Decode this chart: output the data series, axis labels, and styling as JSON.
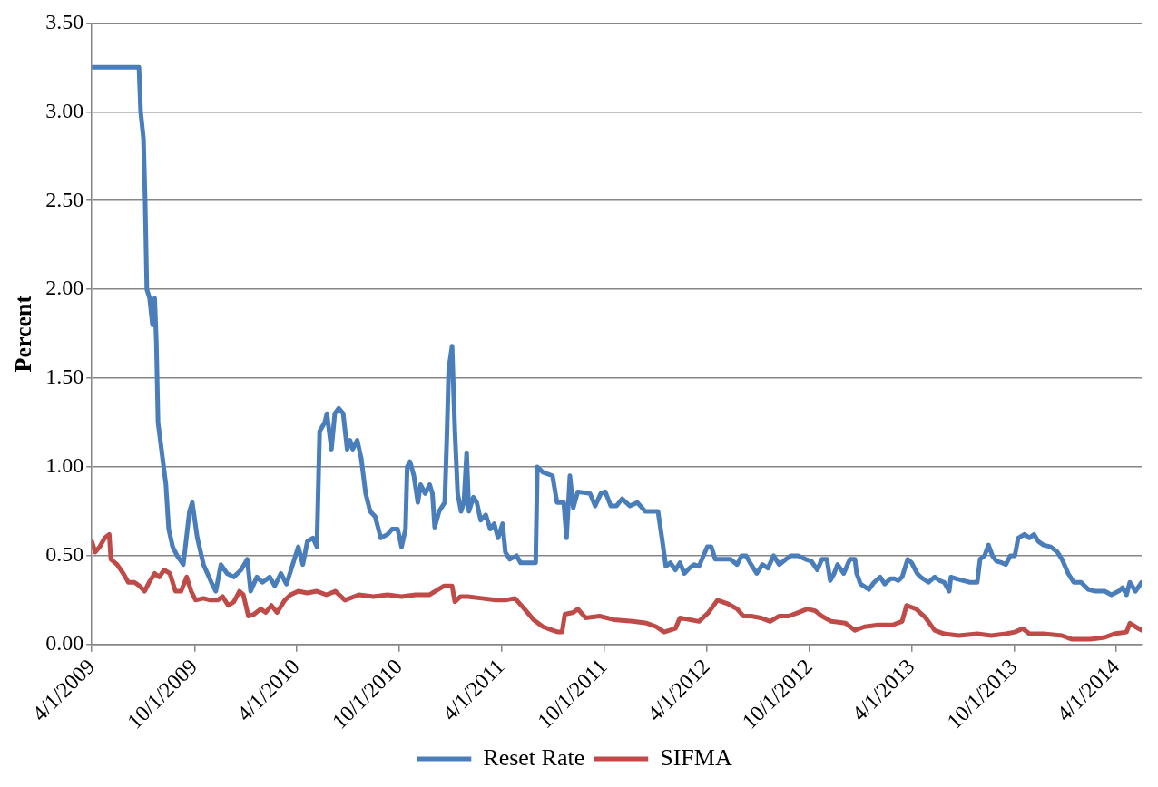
{
  "chart_data": {
    "type": "line",
    "ylabel": "Percent",
    "xlim": [
      "2009-04-01",
      "2014-05-16"
    ],
    "xticks": [
      {
        "value": "2009-04-01",
        "label": "4/1/2009"
      },
      {
        "value": "2009-10-01",
        "label": "10/1/2009"
      },
      {
        "value": "2010-04-01",
        "label": "4/1/2010"
      },
      {
        "value": "2010-10-01",
        "label": "10/1/2010"
      },
      {
        "value": "2011-04-01",
        "label": "4/1/2011"
      },
      {
        "value": "2011-10-01",
        "label": "10/1/2011"
      },
      {
        "value": "2012-04-01",
        "label": "4/1/2012"
      },
      {
        "value": "2012-10-01",
        "label": "10/1/2012"
      },
      {
        "value": "2013-04-01",
        "label": "4/1/2013"
      },
      {
        "value": "2013-10-01",
        "label": "10/1/2013"
      },
      {
        "value": "2014-04-01",
        "label": "4/1/2014"
      }
    ],
    "ylim": [
      0,
      3.5
    ],
    "yticks": [
      {
        "value": 0,
        "label": "0.00"
      },
      {
        "value": 0.5,
        "label": "0.50"
      },
      {
        "value": 1,
        "label": "1.00"
      },
      {
        "value": 1.5,
        "label": "1.50"
      },
      {
        "value": 2,
        "label": "2.00"
      },
      {
        "value": 2.5,
        "label": "2.50"
      },
      {
        "value": 3,
        "label": "3.00"
      },
      {
        "value": 3.5,
        "label": "3.50"
      }
    ],
    "grid": "y",
    "legend": "bottom",
    "marker": "none",
    "line_style": "solid",
    "series": [
      {
        "name": "Reset Rate",
        "color": "#4a7ebb",
        "x": [
          "2009-04-01",
          "2009-06-24",
          "2009-06-27",
          "2009-07-02",
          "2009-07-05",
          "2009-07-08",
          "2009-07-13",
          "2009-07-18",
          "2009-07-22",
          "2009-07-25",
          "2009-07-28",
          "2009-08-03",
          "2009-08-11",
          "2009-08-16",
          "2009-08-23",
          "2009-08-31",
          "2009-09-11",
          "2009-09-22",
          "2009-09-27",
          "2009-10-06",
          "2009-10-17",
          "2009-10-31",
          "2009-11-08",
          "2009-11-17",
          "2009-11-28",
          "2009-12-10",
          "2009-12-23",
          "2010-01-03",
          "2010-01-09",
          "2010-01-20",
          "2010-01-30",
          "2010-02-12",
          "2010-02-21",
          "2010-03-04",
          "2010-03-14",
          "2010-03-22",
          "2010-04-04",
          "2010-04-12",
          "2010-04-20",
          "2010-04-30",
          "2010-05-07",
          "2010-05-12",
          "2010-05-21",
          "2010-05-25",
          "2010-06-02",
          "2010-06-08",
          "2010-06-15",
          "2010-06-23",
          "2010-06-30",
          "2010-07-05",
          "2010-07-10",
          "2010-07-18",
          "2010-07-25",
          "2010-08-02",
          "2010-08-10",
          "2010-08-19",
          "2010-08-29",
          "2010-09-10",
          "2010-09-18",
          "2010-09-28",
          "2010-10-05",
          "2010-10-12",
          "2010-10-15",
          "2010-10-20",
          "2010-10-27",
          "2010-11-03",
          "2010-11-08",
          "2010-11-16",
          "2010-11-24",
          "2010-11-29",
          "2010-12-03",
          "2010-12-11",
          "2010-12-21",
          "2010-12-25",
          "2010-12-28",
          "2011-01-03",
          "2011-01-08",
          "2011-01-13",
          "2011-01-19",
          "2011-01-24",
          "2011-01-29",
          "2011-02-02",
          "2011-02-10",
          "2011-02-16",
          "2011-02-23",
          "2011-03-04",
          "2011-03-12",
          "2011-03-19",
          "2011-03-26",
          "2011-04-03",
          "2011-04-08",
          "2011-04-16",
          "2011-04-28",
          "2011-05-05",
          "2011-06-01",
          "2011-06-04",
          "2011-06-14",
          "2011-07-01",
          "2011-07-09",
          "2011-07-21",
          "2011-07-26",
          "2011-08-01",
          "2011-08-07",
          "2011-08-15",
          "2011-09-06",
          "2011-09-15",
          "2011-09-25",
          "2011-10-03",
          "2011-10-13",
          "2011-10-23",
          "2011-11-02",
          "2011-11-16",
          "2011-11-29",
          "2011-12-13",
          "2012-01-05",
          "2012-01-12",
          "2012-01-19",
          "2012-01-27",
          "2012-02-05",
          "2012-02-13",
          "2012-02-21",
          "2012-03-01",
          "2012-03-09",
          "2012-03-18",
          "2012-03-26",
          "2012-04-02",
          "2012-04-09",
          "2012-04-16",
          "2012-04-29",
          "2012-05-13",
          "2012-05-25",
          "2012-06-02",
          "2012-06-10",
          "2012-06-19",
          "2012-06-29",
          "2012-07-09",
          "2012-07-19",
          "2012-07-29",
          "2012-08-08",
          "2012-08-20",
          "2012-08-29",
          "2012-09-11",
          "2012-09-24",
          "2012-10-04",
          "2012-10-15",
          "2012-10-23",
          "2012-11-01",
          "2012-11-07",
          "2012-11-14",
          "2012-11-20",
          "2012-12-01",
          "2012-12-12",
          "2012-12-21",
          "2012-12-24",
          "2012-12-31",
          "2013-01-15",
          "2013-01-24",
          "2013-02-04",
          "2013-02-12",
          "2013-02-22",
          "2013-03-02",
          "2013-03-08",
          "2013-03-15",
          "2013-03-25",
          "2013-04-01",
          "2013-04-11",
          "2013-04-17",
          "2013-05-01",
          "2013-05-12",
          "2013-05-21",
          "2013-05-29",
          "2013-06-07",
          "2013-06-10",
          "2013-06-20",
          "2013-07-02",
          "2013-07-14",
          "2013-07-27",
          "2013-08-01",
          "2013-08-09",
          "2013-08-16",
          "2013-08-23",
          "2013-08-30",
          "2013-09-09",
          "2013-09-16",
          "2013-09-24",
          "2013-10-02",
          "2013-10-08",
          "2013-10-19",
          "2013-10-28",
          "2013-11-05",
          "2013-11-13",
          "2013-11-22",
          "2013-12-05",
          "2013-12-17",
          "2013-12-25",
          "2014-01-05",
          "2014-01-15",
          "2014-01-28",
          "2014-02-10",
          "2014-02-22",
          "2014-03-11",
          "2014-03-23",
          "2014-04-05",
          "2014-04-12",
          "2014-04-19",
          "2014-04-25",
          "2014-05-05",
          "2014-05-16"
        ],
        "values": [
          3.25,
          3.25,
          3.0,
          2.85,
          2.5,
          2.0,
          1.95,
          1.8,
          1.95,
          1.7,
          1.25,
          1.1,
          0.9,
          0.65,
          0.55,
          0.5,
          0.45,
          0.75,
          0.8,
          0.6,
          0.45,
          0.35,
          0.3,
          0.45,
          0.4,
          0.38,
          0.42,
          0.48,
          0.3,
          0.38,
          0.35,
          0.38,
          0.33,
          0.4,
          0.34,
          0.42,
          0.55,
          0.45,
          0.58,
          0.6,
          0.55,
          1.2,
          1.25,
          1.3,
          1.1,
          1.3,
          1.33,
          1.3,
          1.1,
          1.15,
          1.1,
          1.15,
          1.05,
          0.85,
          0.75,
          0.72,
          0.6,
          0.62,
          0.65,
          0.65,
          0.55,
          0.65,
          1.0,
          1.03,
          0.95,
          0.8,
          0.9,
          0.85,
          0.9,
          0.85,
          0.66,
          0.75,
          0.8,
          1.2,
          1.55,
          1.68,
          1.2,
          0.85,
          0.75,
          0.8,
          1.08,
          0.75,
          0.83,
          0.8,
          0.7,
          0.73,
          0.65,
          0.68,
          0.6,
          0.68,
          0.52,
          0.48,
          0.5,
          0.46,
          0.46,
          1.0,
          0.97,
          0.95,
          0.8,
          0.8,
          0.6,
          0.95,
          0.77,
          0.86,
          0.85,
          0.78,
          0.85,
          0.86,
          0.78,
          0.78,
          0.82,
          0.78,
          0.8,
          0.75,
          0.75,
          0.6,
          0.44,
          0.46,
          0.42,
          0.46,
          0.4,
          0.43,
          0.45,
          0.44,
          0.5,
          0.55,
          0.55,
          0.48,
          0.48,
          0.48,
          0.45,
          0.5,
          0.5,
          0.45,
          0.4,
          0.45,
          0.43,
          0.5,
          0.45,
          0.48,
          0.5,
          0.5,
          0.48,
          0.47,
          0.42,
          0.48,
          0.48,
          0.36,
          0.4,
          0.45,
          0.4,
          0.48,
          0.48,
          0.4,
          0.34,
          0.31,
          0.35,
          0.38,
          0.34,
          0.37,
          0.37,
          0.36,
          0.38,
          0.48,
          0.46,
          0.4,
          0.38,
          0.35,
          0.38,
          0.36,
          0.35,
          0.3,
          0.38,
          0.37,
          0.36,
          0.35,
          0.35,
          0.48,
          0.5,
          0.56,
          0.5,
          0.47,
          0.46,
          0.45,
          0.5,
          0.5,
          0.6,
          0.62,
          0.6,
          0.62,
          0.58,
          0.56,
          0.55,
          0.52,
          0.48,
          0.4,
          0.35,
          0.35,
          0.31,
          0.3,
          0.3,
          0.28,
          0.3,
          0.32,
          0.28,
          0.35,
          0.3,
          0.35
        ]
      },
      {
        "name": "SIFMA",
        "color": "#be4b48",
        "x": [
          "2009-04-01",
          "2009-04-07",
          "2009-04-15",
          "2009-04-24",
          "2009-05-02",
          "2009-05-05",
          "2009-05-16",
          "2009-05-27",
          "2009-06-05",
          "2009-06-16",
          "2009-06-25",
          "2009-07-04",
          "2009-07-12",
          "2009-07-22",
          "2009-07-30",
          "2009-08-08",
          "2009-08-18",
          "2009-08-28",
          "2009-09-07",
          "2009-09-17",
          "2009-09-25",
          "2009-10-03",
          "2009-10-17",
          "2009-10-29",
          "2009-11-11",
          "2009-11-20",
          "2009-11-30",
          "2009-12-10",
          "2009-12-20",
          "2009-12-27",
          "2010-01-05",
          "2010-01-15",
          "2010-01-27",
          "2010-02-05",
          "2010-02-15",
          "2010-02-25",
          "2010-03-11",
          "2010-03-21",
          "2010-04-04",
          "2010-04-20",
          "2010-05-07",
          "2010-05-24",
          "2010-06-09",
          "2010-06-26",
          "2010-07-21",
          "2010-08-16",
          "2010-09-10",
          "2010-10-05",
          "2010-10-30",
          "2010-11-24",
          "2010-12-20",
          "2011-01-03",
          "2011-01-08",
          "2011-01-18",
          "2011-01-31",
          "2011-02-25",
          "2011-03-22",
          "2011-04-08",
          "2011-04-25",
          "2011-05-12",
          "2011-05-28",
          "2011-06-14",
          "2011-07-01",
          "2011-07-11",
          "2011-07-18",
          "2011-07-23",
          "2011-08-07",
          "2011-08-15",
          "2011-08-29",
          "2011-09-23",
          "2011-10-18",
          "2011-11-21",
          "2011-12-16",
          "2012-01-02",
          "2012-01-16",
          "2012-02-05",
          "2012-02-13",
          "2012-03-01",
          "2012-03-18",
          "2012-04-04",
          "2012-04-20",
          "2012-05-08",
          "2012-05-25",
          "2012-06-05",
          "2012-06-19",
          "2012-07-06",
          "2012-07-23",
          "2012-08-08",
          "2012-08-25",
          "2012-09-11",
          "2012-09-27",
          "2012-10-11",
          "2012-10-23",
          "2012-11-09",
          "2012-12-04",
          "2012-12-21",
          "2013-01-07",
          "2013-02-01",
          "2013-02-26",
          "2013-03-15",
          "2013-03-23",
          "2013-04-09",
          "2013-04-26",
          "2013-05-12",
          "2013-05-29",
          "2013-06-24",
          "2013-07-27",
          "2013-08-21",
          "2013-09-16",
          "2013-10-02",
          "2013-10-16",
          "2013-10-28",
          "2013-11-22",
          "2013-12-25",
          "2014-01-11",
          "2014-02-14",
          "2014-03-11",
          "2014-03-28",
          "2014-04-19",
          "2014-04-25",
          "2014-05-05",
          "2014-05-16"
        ],
        "values": [
          0.58,
          0.52,
          0.55,
          0.6,
          0.62,
          0.48,
          0.45,
          0.4,
          0.35,
          0.35,
          0.33,
          0.3,
          0.35,
          0.4,
          0.38,
          0.42,
          0.4,
          0.3,
          0.3,
          0.38,
          0.3,
          0.25,
          0.26,
          0.25,
          0.25,
          0.27,
          0.22,
          0.24,
          0.3,
          0.28,
          0.16,
          0.17,
          0.2,
          0.18,
          0.22,
          0.18,
          0.25,
          0.28,
          0.3,
          0.29,
          0.3,
          0.28,
          0.3,
          0.25,
          0.28,
          0.27,
          0.28,
          0.27,
          0.28,
          0.28,
          0.33,
          0.33,
          0.24,
          0.27,
          0.27,
          0.26,
          0.25,
          0.25,
          0.26,
          0.2,
          0.14,
          0.1,
          0.08,
          0.07,
          0.07,
          0.17,
          0.18,
          0.2,
          0.15,
          0.16,
          0.14,
          0.13,
          0.12,
          0.1,
          0.07,
          0.09,
          0.15,
          0.14,
          0.13,
          0.18,
          0.25,
          0.23,
          0.2,
          0.16,
          0.16,
          0.15,
          0.13,
          0.16,
          0.16,
          0.18,
          0.2,
          0.19,
          0.16,
          0.13,
          0.12,
          0.08,
          0.1,
          0.11,
          0.11,
          0.13,
          0.22,
          0.2,
          0.15,
          0.08,
          0.06,
          0.05,
          0.06,
          0.05,
          0.06,
          0.07,
          0.09,
          0.06,
          0.06,
          0.05,
          0.03,
          0.03,
          0.04,
          0.06,
          0.07,
          0.12,
          0.1,
          0.08
        ]
      }
    ]
  }
}
